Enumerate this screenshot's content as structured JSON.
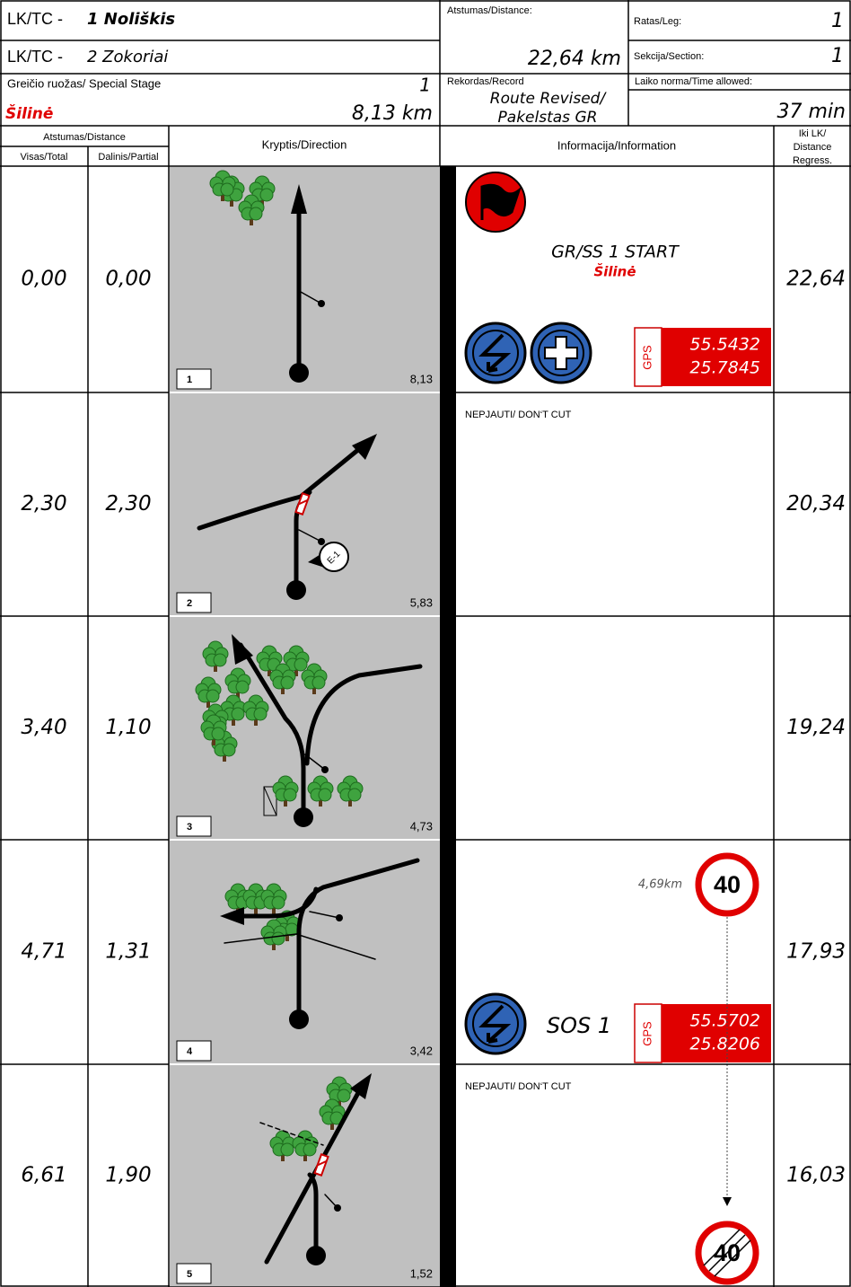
{
  "header": {
    "tc_from_label": "LK/TC -",
    "tc_from": "1 Noliškis",
    "tc_to_label": "LK/TC -",
    "tc_to": "2 Zokoriai",
    "distance_label": "Atstumas/Distance:",
    "distance": "22,64 km",
    "leg_label": "Ratas/Leg:",
    "leg": "1",
    "section_label": "Sekcija/Section:",
    "section": "1",
    "stage_label": "Greičio ruožas/ Special Stage",
    "stage_number": "1",
    "stage_name": "Šilinė",
    "stage_length": "8,13 km",
    "record_label": "Rekordas/Record",
    "record": [
      "Route Revised/",
      "Pakelstas GR"
    ],
    "time_label": "Laiko norma/Time allowed:",
    "time": "37 min"
  },
  "columns": {
    "distance": "Atstumas/Distance",
    "total": "Visas/Total",
    "partial": "Dalinis/Partial",
    "direction": "Kryptis/Direction",
    "information": "Informacija/Information",
    "regress": [
      "Iki LK/",
      "Distance",
      "Regress."
    ]
  },
  "rows": [
    {
      "total": "0,00",
      "partial": "0,00",
      "box": "1",
      "box_distance": "8,13",
      "regress": "22,64",
      "info": {
        "title": "GR/SS 1 START",
        "subtitle": "Šilinė",
        "gps": {
          "label": "GPS",
          "lat": "55.5432",
          "lon": "25.7845"
        }
      }
    },
    {
      "total": "2,30",
      "partial": "2,30",
      "box": "2",
      "box_distance": "5,83",
      "regress": "20,34",
      "info": {
        "note": "NEPJAUTI/ DON‘T CUT",
        "icon_label": "E-1"
      }
    },
    {
      "total": "3,40",
      "partial": "1,10",
      "box": "3",
      "box_distance": "4,73",
      "regress": "19,24",
      "info": {}
    },
    {
      "total": "4,71",
      "partial": "1,31",
      "box": "4",
      "box_distance": "3,42",
      "regress": "17,93",
      "info": {
        "speed_at": "4,69km",
        "speed_sign": "40",
        "sos": "SOS 1",
        "gps": {
          "label": "GPS",
          "lat": "55.5702",
          "lon": "25.8206"
        }
      }
    },
    {
      "total": "6,61",
      "partial": "1,90",
      "box": "5",
      "box_distance": "1,52",
      "regress": "16,03",
      "info": {
        "note": "NEPJAUTI/ DON‘T CUT",
        "speed_end": "40"
      }
    }
  ]
}
